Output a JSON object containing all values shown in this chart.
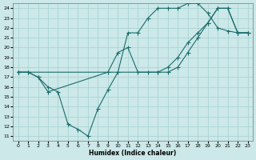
{
  "xlabel": "Humidex (Indice chaleur)",
  "bg_color": "#cce8e8",
  "grid_color": "#aad4d4",
  "line_color": "#1a6b6b",
  "xlim": [
    -0.5,
    23.5
  ],
  "ylim": [
    10.5,
    24.5
  ],
  "xticks": [
    0,
    1,
    2,
    3,
    4,
    5,
    6,
    7,
    8,
    9,
    10,
    11,
    12,
    13,
    14,
    15,
    16,
    17,
    18,
    19,
    20,
    21,
    22,
    23
  ],
  "yticks": [
    11,
    12,
    13,
    14,
    15,
    16,
    17,
    18,
    19,
    20,
    21,
    22,
    23,
    24
  ],
  "line1_x": [
    0,
    1,
    2,
    3,
    4,
    5,
    6,
    7,
    8,
    9,
    10,
    11,
    12,
    13,
    14,
    15,
    16,
    17,
    18,
    19,
    20,
    21,
    22,
    23
  ],
  "line1_y": [
    17.5,
    17.5,
    17.0,
    16.0,
    15.5,
    12.2,
    11.7,
    11.0,
    13.8,
    15.7,
    17.5,
    21.5,
    21.5,
    23.0,
    24.0,
    24.0,
    24.0,
    24.5,
    24.5,
    23.5,
    22.0,
    21.7,
    21.5,
    21.5
  ],
  "line2_x": [
    0,
    1,
    2,
    3,
    9,
    10,
    11,
    12,
    13,
    14,
    15,
    16,
    17,
    18,
    19,
    20,
    21,
    22,
    23
  ],
  "line2_y": [
    17.5,
    17.5,
    17.0,
    15.5,
    17.5,
    19.5,
    20.0,
    17.5,
    17.5,
    17.5,
    17.5,
    18.0,
    19.5,
    21.0,
    22.5,
    24.0,
    24.0,
    21.5,
    21.5
  ],
  "line3_x": [
    0,
    14,
    15,
    16,
    17,
    18,
    19,
    20,
    21,
    22,
    23
  ],
  "line3_y": [
    17.5,
    17.5,
    18.0,
    19.0,
    20.5,
    21.5,
    22.5,
    24.0,
    24.0,
    21.5,
    21.5
  ]
}
